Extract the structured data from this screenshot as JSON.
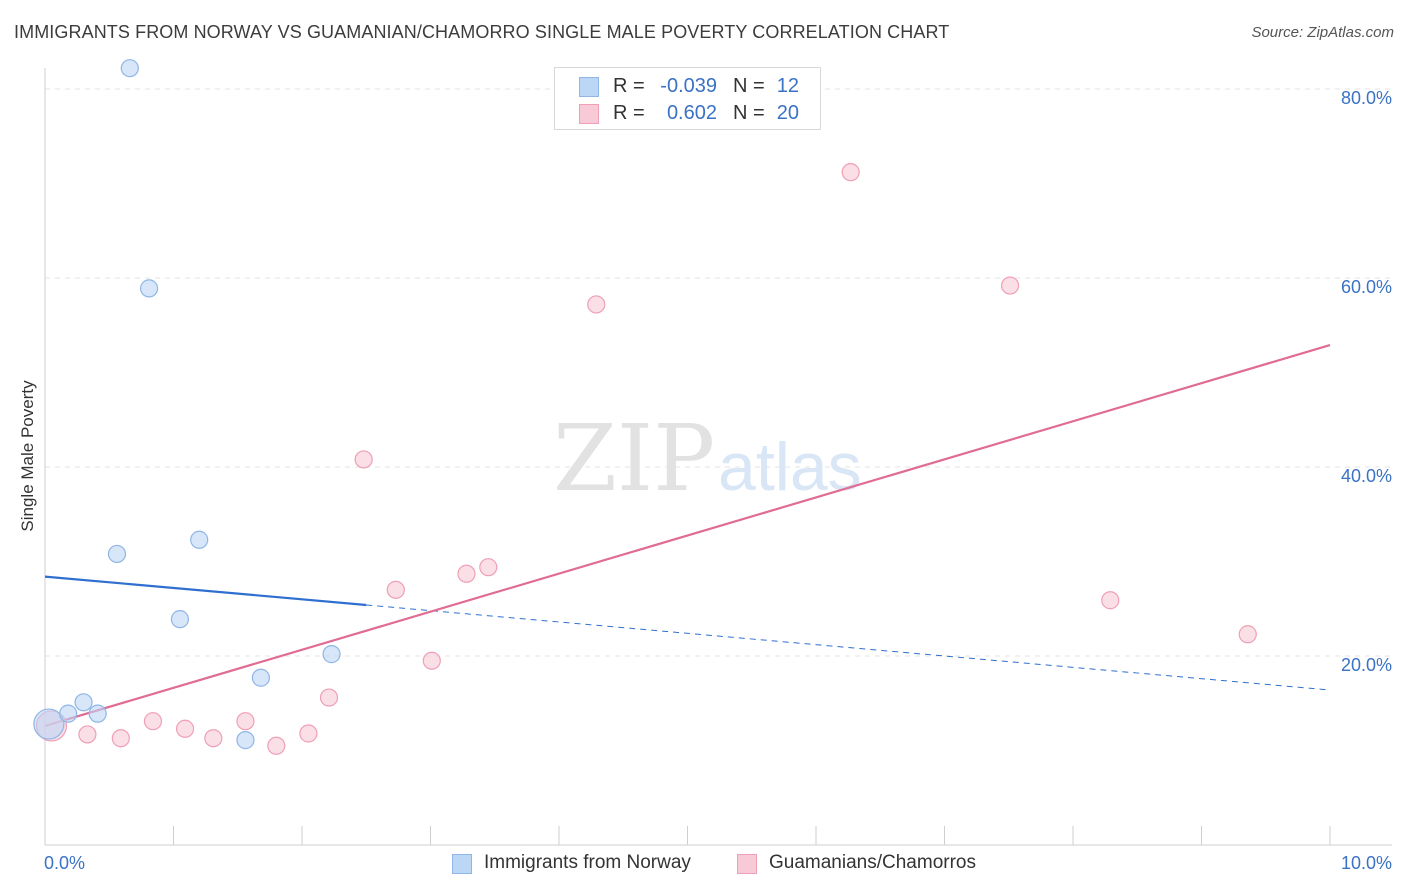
{
  "title": "IMMIGRANTS FROM NORWAY VS GUAMANIAN/CHAMORRO SINGLE MALE POVERTY CORRELATION CHART",
  "source": "Source: ZipAtlas.com",
  "legend": {
    "rows": [
      {
        "r_label": "R =",
        "r_value": "-0.039",
        "n_label": "N =",
        "n_value": "12"
      },
      {
        "r_label": "R =",
        "r_value": "0.602",
        "n_label": "N =",
        "n_value": "20"
      }
    ]
  },
  "watermark": {
    "zip": "ZIP",
    "atlas": "atlas"
  },
  "colors": {
    "blue_fill": "#bcd6f5",
    "blue_stroke": "#8fb6e6",
    "blue_line": "#2f6fd0",
    "pink_fill": "#f8c9d6",
    "pink_stroke": "#ef9fb6",
    "pink_line": "#e06b93",
    "tick_text": "#3a72c4",
    "grid": "#e3e3e3"
  },
  "chart_data": {
    "type": "scatter",
    "title": "IMMIGRANTS FROM NORWAY VS GUAMANIAN/CHAMORRO SINGLE MALE POVERTY CORRELATION CHART",
    "xlabel": "",
    "ylabel": "Single Male Poverty",
    "xlim": [
      0,
      10
    ],
    "ylim": [
      0,
      80
    ],
    "x_tick_labels": [
      "0.0%",
      "10.0%"
    ],
    "y_ticks": [
      20,
      40,
      60,
      80
    ],
    "y_tick_labels": [
      "20.0%",
      "40.0%",
      "60.0%",
      "80.0%"
    ],
    "grid": true,
    "legend_position": "top-center",
    "series": [
      {
        "name": "Immigrants from Norway",
        "color": "#bcd6f5",
        "points": [
          {
            "x": 0.03,
            "y": 12.8,
            "size": "large"
          },
          {
            "x": 0.18,
            "y": 13.9
          },
          {
            "x": 0.3,
            "y": 15.1
          },
          {
            "x": 0.41,
            "y": 13.9
          },
          {
            "x": 0.56,
            "y": 30.8
          },
          {
            "x": 0.66,
            "y": 82.2
          },
          {
            "x": 0.81,
            "y": 58.9
          },
          {
            "x": 1.05,
            "y": 23.9
          },
          {
            "x": 1.2,
            "y": 32.3
          },
          {
            "x": 1.56,
            "y": 11.1
          },
          {
            "x": 1.68,
            "y": 17.7
          },
          {
            "x": 2.23,
            "y": 20.2
          }
        ],
        "trend": {
          "x1": 0.0,
          "y1": 28.4,
          "x2": 10.0,
          "y2": 16.4,
          "solid_until_x": 2.5
        }
      },
      {
        "name": "Guamanians/Chamorros",
        "color": "#f8c9d6",
        "points": [
          {
            "x": 0.05,
            "y": 12.6,
            "size": "large"
          },
          {
            "x": 0.33,
            "y": 11.7
          },
          {
            "x": 0.59,
            "y": 11.3
          },
          {
            "x": 0.84,
            "y": 13.1
          },
          {
            "x": 1.09,
            "y": 12.3
          },
          {
            "x": 1.31,
            "y": 11.3
          },
          {
            "x": 1.56,
            "y": 13.1
          },
          {
            "x": 1.8,
            "y": 10.5
          },
          {
            "x": 2.05,
            "y": 11.8
          },
          {
            "x": 2.21,
            "y": 15.6
          },
          {
            "x": 2.48,
            "y": 40.8
          },
          {
            "x": 2.73,
            "y": 27.0
          },
          {
            "x": 3.01,
            "y": 19.5
          },
          {
            "x": 3.28,
            "y": 28.7
          },
          {
            "x": 3.45,
            "y": 29.4
          },
          {
            "x": 4.29,
            "y": 57.2
          },
          {
            "x": 6.27,
            "y": 71.2
          },
          {
            "x": 7.51,
            "y": 59.2
          },
          {
            "x": 8.29,
            "y": 25.9
          },
          {
            "x": 9.36,
            "y": 22.3
          }
        ],
        "trend": {
          "x1": 0.0,
          "y1": 12.6,
          "x2": 10.0,
          "y2": 52.9
        }
      }
    ]
  }
}
